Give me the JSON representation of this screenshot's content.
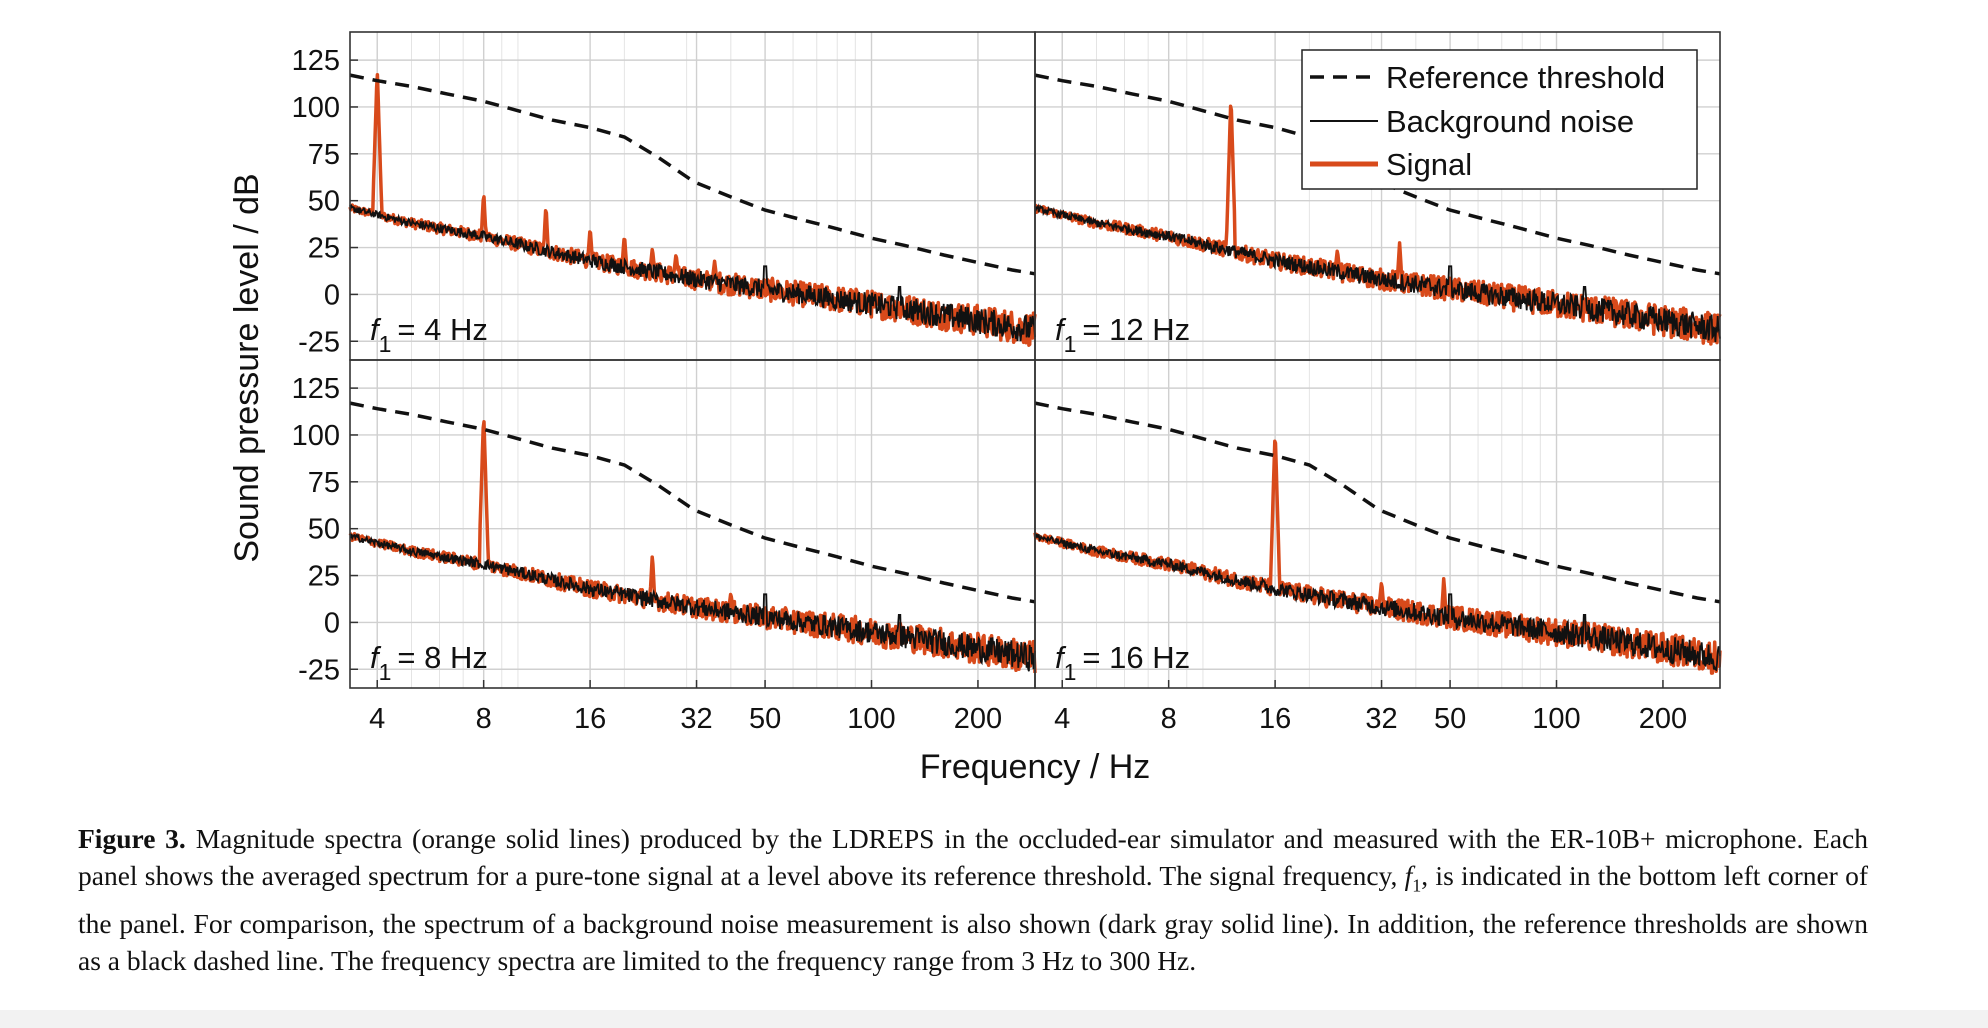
{
  "chart_data": {
    "type": "line",
    "xscale": "log",
    "xlim": [
      3.35,
      290
    ],
    "ylim": [
      -35,
      140
    ],
    "xlabel": "Frequency / Hz",
    "ylabel": "Sound pressure level / dB",
    "xticks": [
      4,
      8,
      16,
      32,
      50,
      100,
      200
    ],
    "xtick_labels": [
      "4",
      "8",
      "16",
      "32",
      "50",
      "100",
      "200"
    ],
    "yticks": [
      -25,
      0,
      25,
      50,
      75,
      100,
      125
    ],
    "ytick_labels": [
      "-25",
      "0",
      "25",
      "50",
      "75",
      "100",
      "125"
    ],
    "legend": {
      "position": "top-right",
      "entries": [
        "Reference threshold",
        "Background noise",
        "Signal"
      ]
    },
    "colors": {
      "signal": "#d84a1b",
      "noise": "#111111",
      "threshold": "#111111",
      "grid": "#d0d0d0"
    },
    "reference_threshold": {
      "name": "Reference threshold",
      "x": [
        3.35,
        4,
        5,
        6.3,
        8,
        10,
        12.5,
        16,
        20,
        25,
        31.5,
        40,
        50,
        63,
        80,
        100,
        125,
        160,
        200,
        250,
        290
      ],
      "y": [
        117,
        114,
        111,
        107,
        103,
        98,
        93,
        89,
        84,
        73,
        60,
        52,
        45,
        40,
        35,
        30,
        26,
        21,
        17,
        13,
        11
      ]
    },
    "background_noise": {
      "name": "Background noise",
      "x": [
        3.35,
        5,
        8,
        16,
        32,
        64,
        128,
        290
      ],
      "y": [
        46,
        38,
        31,
        18,
        8,
        0,
        -8,
        -19
      ],
      "peaks": [
        {
          "x": 50,
          "y": 15
        },
        {
          "x": 120,
          "y": 4
        }
      ]
    },
    "panels": [
      {
        "label_symbol": "f",
        "label_sub": "1",
        "label_text": "= 4 Hz",
        "f1": 4,
        "signal_peaks": [
          {
            "x": 4,
            "y": 120
          },
          {
            "x": 8,
            "y": 55
          },
          {
            "x": 12,
            "y": 48
          },
          {
            "x": 16,
            "y": 36
          },
          {
            "x": 20,
            "y": 32
          },
          {
            "x": 24,
            "y": 25
          },
          {
            "x": 28,
            "y": 22
          },
          {
            "x": 36,
            "y": 18
          }
        ]
      },
      {
        "label_symbol": "f",
        "label_sub": "1",
        "label_text": "= 12 Hz",
        "f1": 12,
        "signal_peaks": [
          {
            "x": 12,
            "y": 106
          },
          {
            "x": 24,
            "y": 24
          },
          {
            "x": 36,
            "y": 28
          }
        ]
      },
      {
        "label_symbol": "f",
        "label_sub": "1",
        "label_text": "= 8 Hz",
        "f1": 8,
        "signal_peaks": [
          {
            "x": 8,
            "y": 112
          },
          {
            "x": 24,
            "y": 37
          },
          {
            "x": 40,
            "y": 16
          }
        ]
      },
      {
        "label_symbol": "f",
        "label_sub": "1",
        "label_text": "= 16 Hz",
        "f1": 16,
        "signal_peaks": [
          {
            "x": 16,
            "y": 103
          },
          {
            "x": 32,
            "y": 22
          },
          {
            "x": 48,
            "y": 24
          }
        ]
      }
    ]
  },
  "caption": {
    "lead": "Figure 3.",
    "part1": "Magnitude spectra (orange solid lines) produced by the LDREPS in the occluded-ear simulator and measured with the ER-10B+ microphone. Each panel shows the averaged spectrum for a pure-tone signal at a level above its reference threshold. The signal frequency,",
    "symbol": "f",
    "symbol_sub": "1",
    "part2": ", is indicated in the bottom left corner of the panel. For comparison, the spectrum of a background noise measurement is also shown (dark gray solid line). In addition, the reference thresholds are shown as a black dashed line. The frequency spectra are limited to the frequency range from 3 Hz to 300 Hz."
  }
}
